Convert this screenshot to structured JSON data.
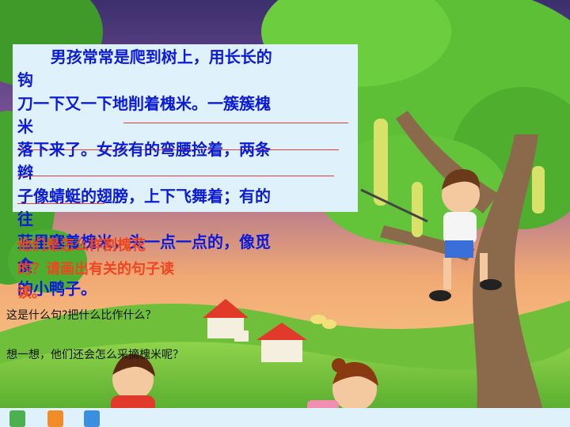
{
  "slide": {
    "passage_lines": [
      "      男孩常常是爬到树上，用长长的",
      "钩",
      "刀一下又一下地削着槐米。一簇簇槐",
      "米",
      "落下来了。女孩有的弯腰捡着，两条",
      "辫",
      "子像蜻蜓的翅膀，上下飞舞着；有的",
      "往",
      "蓝里塞着槐米，头一点一点的，像觅",
      "食",
      "的小鸭子。"
    ],
    "question": "他们是怎么样割槐花\n的？请画出有关的句子读\n读。",
    "prompt_1": "这是什么句?把什么比作什么？",
    "prompt_2": "想一想，他们还会怎么采摘槐米呢？"
  },
  "colors": {
    "passage_text": "#0b1bd8",
    "question_text": "#f0451f",
    "underline": "#e33a3a",
    "box_bg": "#dff1fb"
  }
}
